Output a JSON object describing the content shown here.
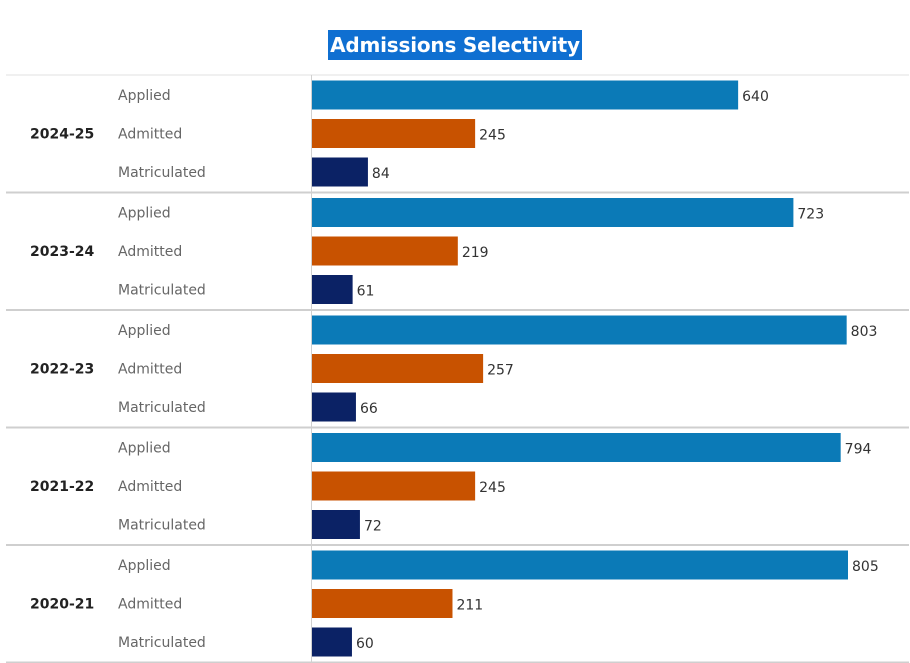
{
  "chart_data": {
    "type": "bar",
    "orientation": "horizontal",
    "title": "Admissions Selectivity",
    "groups": [
      "2024-25",
      "2023-24",
      "2022-23",
      "2021-22",
      "2020-21"
    ],
    "categories": [
      "Applied",
      "Admitted",
      "Matriculated"
    ],
    "values": [
      [
        640,
        245,
        84
      ],
      [
        723,
        219,
        61
      ],
      [
        803,
        257,
        66
      ],
      [
        794,
        245,
        72
      ],
      [
        805,
        211,
        60
      ]
    ],
    "colors": [
      "#0b7ab7",
      "#c85200",
      "#0b2265"
    ],
    "xlim": [
      0,
      805
    ],
    "grid": false,
    "legend": "none"
  }
}
